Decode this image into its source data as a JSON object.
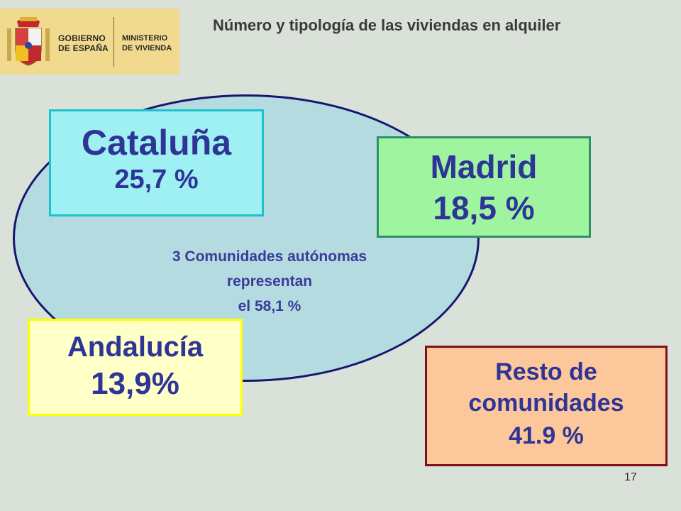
{
  "header": {
    "logo": {
      "line1": "GOBIERNO",
      "line2": "DE ESPAÑA",
      "line3": "MINISTERIO",
      "line4": "DE VIVIENDA",
      "crest_icon": "spain-coat-of-arms-icon"
    },
    "title": "Número y tipología de las viviendas en alquiler"
  },
  "diagram": {
    "ellipse_text": {
      "line1": "3 Comunidades autónomas",
      "line2": "representan",
      "line3": "el 58,1 %"
    },
    "boxes": {
      "cataluna": {
        "name": "Cataluña",
        "value": "25,7 %"
      },
      "madrid": {
        "name": "Madrid",
        "value": "18,5 %"
      },
      "andalucia": {
        "name": "Andalucía",
        "value": "13,9%"
      },
      "resto": {
        "name_line1": "Resto de",
        "name_line2": "comunidades",
        "value": "41.9 %"
      }
    }
  },
  "footer": {
    "page_number": "17"
  },
  "colors": {
    "background": "#d9e1d9",
    "ellipse_fill": "#b4dce0",
    "ellipse_border": "#15176e",
    "text_blue": "#2f3596",
    "cataluna_fill": "#9ff0f3",
    "madrid_fill": "#9ff59f",
    "andalucia_fill": "#ffffc8",
    "resto_fill": "#fcc89b",
    "resto_border": "#7f0f1a"
  }
}
